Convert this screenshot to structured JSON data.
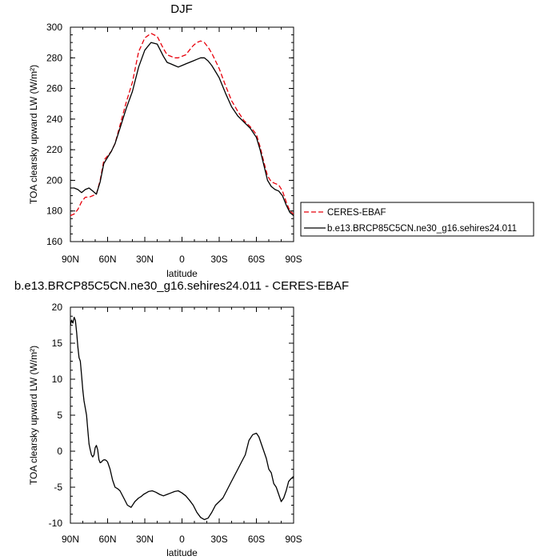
{
  "chart_data": [
    {
      "type": "line",
      "title": "DJF",
      "xlabel": "latitude",
      "ylabel": "TOA clearsky upward LW (W/m²)",
      "ylim": [
        160,
        300
      ],
      "xlim": [
        90,
        -90
      ],
      "yticks": [
        160,
        180,
        200,
        220,
        240,
        260,
        280,
        300
      ],
      "xticks": [
        90,
        60,
        30,
        0,
        -30,
        -60,
        -90
      ],
      "xtick_labels": [
        "90N",
        "60N",
        "30N",
        "0",
        "30S",
        "60S",
        "90S"
      ],
      "legend_placement": "right",
      "series": [
        {
          "name": "CERES-EBAF",
          "color": "#e8000b",
          "dash": "dashed",
          "x": [
            90,
            87,
            84,
            81,
            78,
            75,
            72,
            69,
            66,
            63,
            60,
            57,
            54,
            50,
            45,
            40,
            35,
            30,
            25,
            20,
            15,
            12,
            9,
            6,
            3,
            0,
            -3,
            -6,
            -9,
            -12,
            -15,
            -18,
            -21,
            -24,
            -27,
            -30,
            -35,
            -40,
            -45,
            -50,
            -55,
            -60,
            -63,
            -66,
            -69,
            -72,
            -75,
            -78,
            -81,
            -84,
            -87,
            -90
          ],
          "y": [
            177,
            178,
            181,
            186,
            189,
            189,
            190,
            191,
            200,
            213,
            216,
            219,
            224,
            236,
            251,
            264,
            284,
            293,
            296,
            294,
            286,
            282,
            281,
            280,
            280,
            281,
            282,
            285,
            288,
            290,
            291,
            290,
            287,
            283,
            278,
            273,
            262,
            252,
            245,
            239,
            235,
            230,
            222,
            212,
            203,
            199,
            198,
            197,
            193,
            186,
            180,
            178
          ]
        },
        {
          "name": "b.e13.BRCP85C5CN.ne30_g16.sehires24.011",
          "color": "#000000",
          "dash": "solid",
          "x": [
            90,
            87,
            84,
            81,
            78,
            75,
            72,
            69,
            66,
            63,
            60,
            57,
            54,
            50,
            45,
            40,
            35,
            30,
            25,
            20,
            15,
            12,
            9,
            6,
            3,
            0,
            -3,
            -6,
            -9,
            -12,
            -15,
            -18,
            -21,
            -24,
            -27,
            -30,
            -35,
            -40,
            -45,
            -50,
            -55,
            -60,
            -63,
            -66,
            -69,
            -72,
            -75,
            -78,
            -81,
            -84,
            -87,
            -90
          ],
          "y": [
            195,
            195,
            194,
            192,
            194,
            195,
            193,
            191,
            199,
            211,
            215,
            219,
            224,
            234,
            247,
            258,
            274,
            285,
            290,
            289,
            281,
            277,
            276,
            275,
            274,
            275,
            276,
            277,
            278,
            279,
            280,
            280,
            278,
            275,
            271,
            267,
            257,
            248,
            242,
            238,
            234,
            228,
            220,
            210,
            200,
            196,
            194,
            193,
            190,
            184,
            179,
            177
          ]
        }
      ]
    },
    {
      "type": "line",
      "title": "b.e13.BRCP85C5CN.ne30_g16.sehires24.011 - CERES-EBAF",
      "xlabel": "latitude",
      "ylabel": "TOA clearsky upward LW (W/m²)",
      "ylim": [
        -10,
        20
      ],
      "xlim": [
        90,
        -90
      ],
      "yticks": [
        -10,
        -5,
        0,
        5,
        10,
        15,
        20
      ],
      "xticks": [
        90,
        60,
        30,
        0,
        -30,
        -60,
        -90
      ],
      "xtick_labels": [
        "90N",
        "60N",
        "30N",
        "0",
        "30S",
        "60S",
        "90S"
      ],
      "series": [
        {
          "color": "#000000",
          "dash": "solid",
          "x": [
            90,
            89,
            88,
            87,
            86,
            85,
            84,
            83,
            82,
            81,
            80,
            79,
            78,
            77,
            76,
            75,
            74,
            73,
            72,
            71,
            70,
            69,
            68,
            67,
            66,
            65,
            64,
            63,
            62,
            61,
            60,
            58,
            56,
            54,
            52,
            50,
            47,
            44,
            41,
            38,
            35,
            33,
            31,
            29,
            27,
            24,
            21,
            18,
            15,
            12,
            9,
            6,
            3,
            0,
            -3,
            -6,
            -9,
            -12,
            -15,
            -18,
            -21,
            -24,
            -27,
            -30,
            -33,
            -36,
            -39,
            -42,
            -45,
            -48,
            -51,
            -54,
            -57,
            -60,
            -62,
            -64,
            -66,
            -68,
            -70,
            -72,
            -74,
            -76,
            -78,
            -80,
            -82,
            -84,
            -86,
            -88,
            -90
          ],
          "y": [
            17.5,
            18.2,
            17.8,
            18.6,
            18.2,
            16.5,
            14.5,
            13.0,
            12.5,
            10.5,
            8.5,
            7.0,
            6.0,
            5.0,
            3.0,
            1.0,
            0.2,
            -0.5,
            -0.8,
            -0.5,
            0.5,
            0.8,
            0.2,
            -1.2,
            -1.6,
            -1.5,
            -1.3,
            -1.2,
            -1.2,
            -1.3,
            -1.5,
            -2.5,
            -4.0,
            -5.0,
            -5.2,
            -5.5,
            -6.5,
            -7.5,
            -7.8,
            -7.0,
            -6.5,
            -6.3,
            -6.0,
            -5.8,
            -5.6,
            -5.5,
            -5.7,
            -6.0,
            -6.2,
            -6.0,
            -5.8,
            -5.6,
            -5.5,
            -5.8,
            -6.2,
            -6.8,
            -7.5,
            -8.5,
            -9.2,
            -9.5,
            -9.3,
            -8.5,
            -7.5,
            -7.0,
            -6.5,
            -5.5,
            -4.5,
            -3.5,
            -2.5,
            -1.5,
            -0.5,
            1.5,
            2.3,
            2.5,
            2.0,
            1.0,
            0.0,
            -1.0,
            -2.5,
            -3.0,
            -4.5,
            -5.0,
            -6.0,
            -7.0,
            -6.5,
            -5.5,
            -4.2,
            -3.8,
            -3.5
          ]
        }
      ]
    }
  ],
  "legend": {
    "ceres_label": "CERES-EBAF",
    "model_label": "b.e13.BRCP85C5CN.ne30_g16.sehires24.011"
  }
}
